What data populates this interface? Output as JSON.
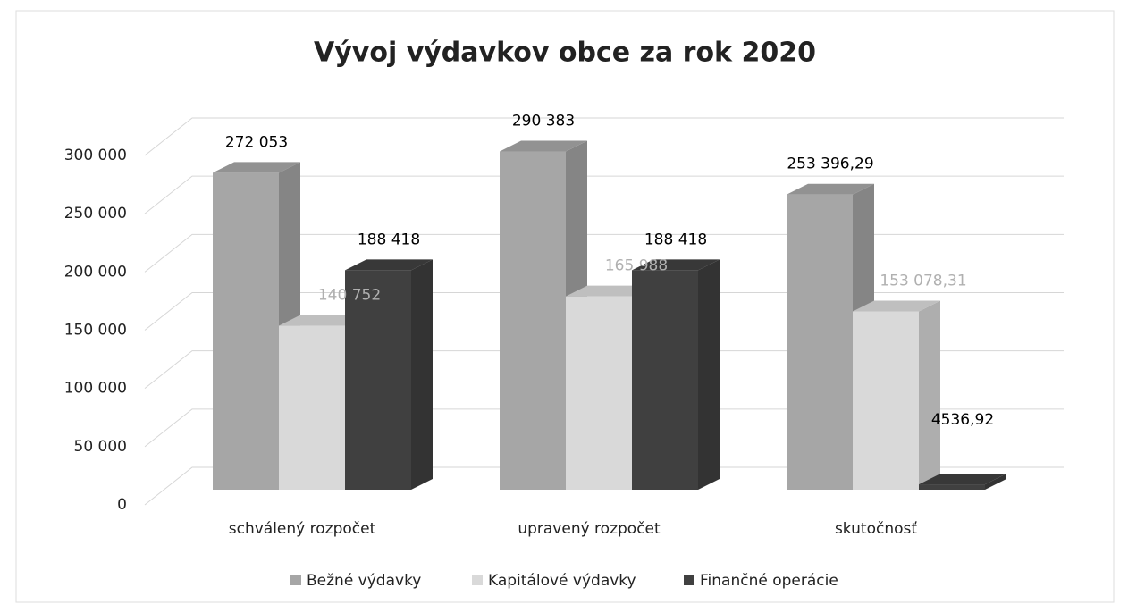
{
  "chart_data": {
    "type": "bar3d",
    "title": "Vývoj výdavkov obce za rok 2020",
    "categories": [
      "schválený rozpočet",
      "upravený rozpočet",
      "skutočnosť"
    ],
    "series": [
      {
        "name": "Bežné výdavky",
        "color": "#a6a6a6",
        "label_color": "#000000",
        "values": [
          272053,
          290383,
          253396.29
        ],
        "value_labels": [
          "272 053",
          "290 383",
          "253 396,29"
        ]
      },
      {
        "name": "Kapitálové výdavky",
        "color": "#d9d9d9",
        "label_color": "#b0b0b0",
        "values": [
          140752,
          165988,
          153078.31
        ],
        "value_labels": [
          "140 752",
          "165 988",
          "153 078,31"
        ]
      },
      {
        "name": "Finančné operácie",
        "color": "#404040",
        "label_color": "#000000",
        "values": [
          188418,
          188418,
          4536.92
        ],
        "value_labels": [
          "188 418",
          "188 418",
          "4536,92"
        ]
      }
    ],
    "ylim": [
      0,
      300000
    ],
    "yticks": [
      0,
      {
        "value": 50000,
        "label": "50 000"
      },
      {
        "value": 100000,
        "label": "100 000"
      },
      {
        "value": 150000,
        "label": "150 000"
      },
      {
        "value": 200000,
        "label": "200 000"
      },
      {
        "value": 250000,
        "label": "250 000"
      },
      {
        "value": 300000,
        "label": "300 000"
      }
    ],
    "grid": true,
    "legend": "bottom"
  }
}
